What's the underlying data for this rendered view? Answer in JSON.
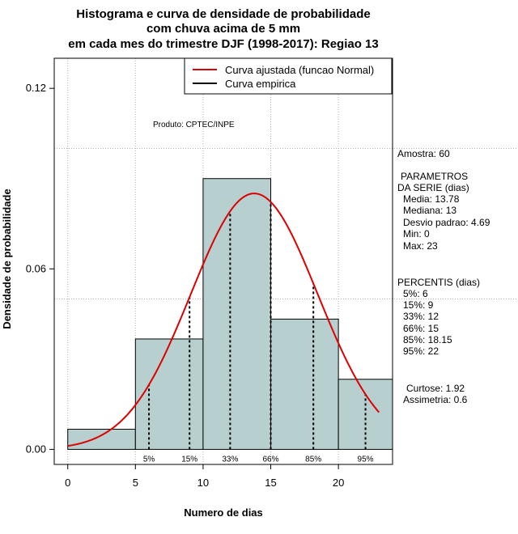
{
  "chart_data": {
    "type": "bar",
    "title_lines": [
      "Histograma e curva de densidade de probabilidade",
      "com chuva acima de 5 mm",
      "em cada mes do trimestre DJF (1998-2017): Regiao 13"
    ],
    "xlabel": "Numero de dias",
    "ylabel": "Densidade de probabilidade",
    "xlim": [
      -1,
      24
    ],
    "ylim": [
      -0.005,
      0.13
    ],
    "x_ticks": [
      0,
      5,
      10,
      15,
      20
    ],
    "x_tick_labels": [
      "0",
      "5",
      "10",
      "15",
      "20"
    ],
    "y_ticks": [
      0.0,
      0.06,
      0.12
    ],
    "y_tick_labels": [
      "0.00",
      "0.06",
      "0.12"
    ],
    "grid": true,
    "grid_x": [
      0,
      5,
      10,
      15,
      20
    ],
    "grid_y": [
      0.05,
      0.1
    ],
    "bar_color": "#b7cfcf",
    "curve_color": "#dd0000",
    "bins": [
      {
        "x0": 0,
        "x1": 5,
        "density": 0.0067
      },
      {
        "x0": 5,
        "x1": 10,
        "density": 0.0367
      },
      {
        "x0": 10,
        "x1": 15,
        "density": 0.09
      },
      {
        "x0": 15,
        "x1": 20,
        "density": 0.0433
      },
      {
        "x0": 20,
        "x1": 24,
        "density": 0.0233
      }
    ],
    "normal_curve": {
      "mean": 13.78,
      "sd": 4.69,
      "x_range": [
        0,
        23
      ]
    },
    "percentile_marks": [
      {
        "label": "5%",
        "x": 6
      },
      {
        "label": "15%",
        "x": 9
      },
      {
        "label": "33%",
        "x": 12
      },
      {
        "label": "66%",
        "x": 15
      },
      {
        "label": "85%",
        "x": 18.15
      },
      {
        "label": "95%",
        "x": 22
      }
    ],
    "legend": {
      "placement": "top-right",
      "entries": [
        {
          "label": "Curva ajustada (funcao Normal)",
          "color": "#dd0000"
        },
        {
          "label": "Curva empirica",
          "color": "#000000"
        }
      ]
    },
    "annotations": {
      "product": "Produto: CPTEC/INPE"
    }
  },
  "stats_panel": {
    "amostra": "Amostra: 60",
    "param_header_1": "PARAMETROS",
    "param_header_2": "DA SERIE (dias)",
    "params": [
      "Media: 13.78",
      "Mediana: 13",
      "Desvio padrao: 4.69",
      "Min: 0",
      "Max: 23"
    ],
    "percentis_header": "PERCENTIS (dias)",
    "percentis": [
      "5%: 6",
      "15%: 9",
      "33%: 12",
      "66%: 15",
      "85%: 18.15",
      "95%: 22"
    ],
    "curtose": "Curtose: 1.92",
    "assimetria": "Assimetria: 0.6"
  }
}
